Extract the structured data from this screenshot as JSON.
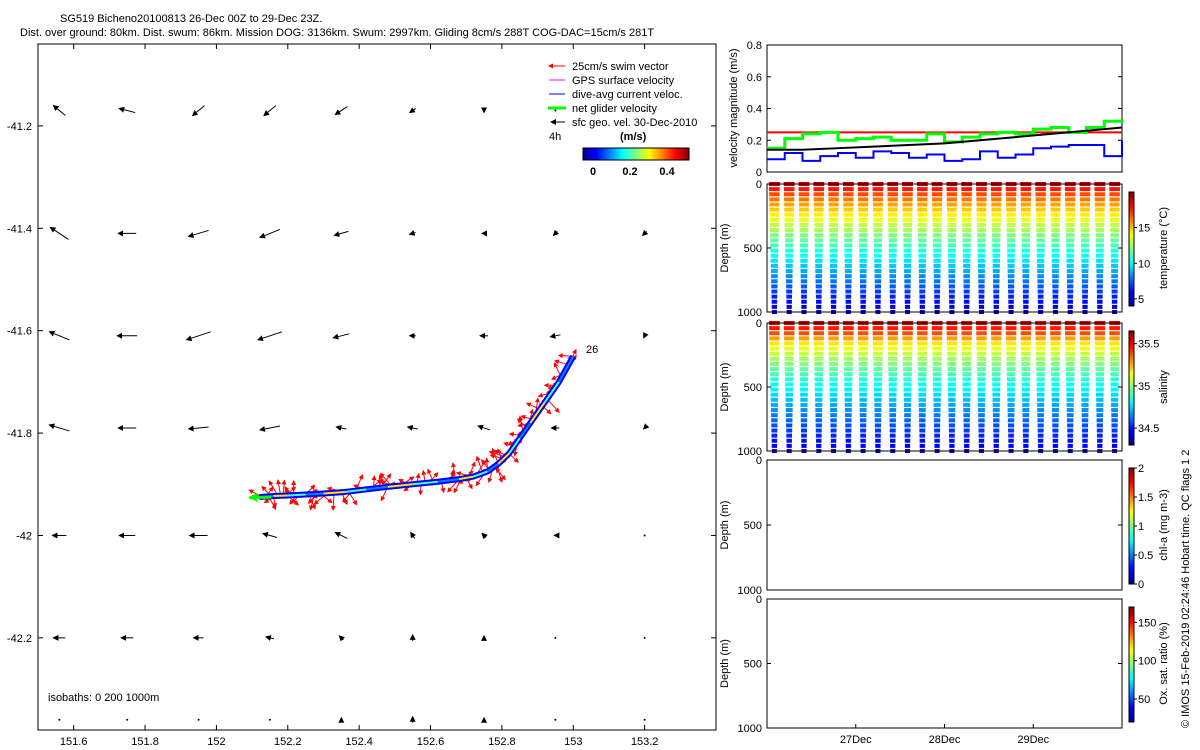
{
  "header": {
    "line1": "SG519 Bicheno20100813 26-Dec 00Z to 29-Dec 23Z.",
    "line2": "Dist. over ground: 80km. Dist. swum: 86km. Mission DOG: 3136km. Swum: 2997km. Gliding 8cm/s 288T COG-DAC=15cm/s 281T"
  },
  "credit": "© IMOS 15-Feb-2019 02:24:46 Hobart time. QC flags 1  2",
  "colors": {
    "swim": "#ff0000",
    "gps": "#ff00ff",
    "dac": "#0000ff",
    "net": "#00ff00",
    "geo": "#000000"
  },
  "chart_data": [
    {
      "type": "map",
      "xlim": [
        151.5,
        153.4
      ],
      "ylim": [
        -42.38,
        -41.04
      ],
      "xticks": [
        "151.6",
        "151.8",
        "152",
        "152.2",
        "152.4",
        "152.6",
        "152.8",
        "153",
        "153.2"
      ],
      "xtick_values": [
        151.6,
        151.8,
        152.0,
        152.2,
        152.4,
        152.6,
        152.8,
        153.0,
        153.2
      ],
      "yticks": [
        "-41.2",
        "-41.4",
        "-41.6",
        "-41.8",
        "-42",
        "-42.2"
      ],
      "ytick_values": [
        -41.2,
        -41.4,
        -41.6,
        -41.8,
        -42.0,
        -42.2
      ],
      "legend": {
        "items": [
          "25cm/s swim vector",
          "GPS surface velocity",
          "dive-avg current veloc.",
          "net glider velocity",
          "sfc geo. vel. 30-Dec-2010"
        ],
        "time_label": "4h",
        "colorbar_title": "(m/s)",
        "colorbar_ticks": [
          "0",
          "0.2",
          "0.4"
        ]
      },
      "isobaths_label": "isobaths: 0   200  1000m",
      "track_start_label": "26",
      "track": {
        "lon": [
          153.0,
          152.96,
          152.92,
          152.88,
          152.85,
          152.82,
          152.79,
          152.76,
          152.72,
          152.68,
          152.62,
          152.55,
          152.48,
          152.42,
          152.36,
          152.3,
          152.25,
          152.2,
          152.16,
          152.12
        ],
        "lat": [
          -41.65,
          -41.7,
          -41.74,
          -41.78,
          -41.81,
          -41.84,
          -41.86,
          -41.875,
          -41.885,
          -41.89,
          -41.895,
          -41.9,
          -41.905,
          -41.91,
          -41.915,
          -41.918,
          -41.92,
          -41.922,
          -41.923,
          -41.925
        ]
      },
      "geo_vectors": {
        "lat_rows": [
          -41.17,
          -41.41,
          -41.61,
          -41.79,
          -42.0,
          -42.2,
          -42.36
        ],
        "lon_cols": [
          151.56,
          151.75,
          151.95,
          152.15,
          152.35,
          152.55,
          152.75,
          152.95,
          153.2
        ],
        "u": [
          [
            -0.06,
            -0.08,
            -0.06,
            -0.06,
            -0.06,
            -0.03,
            0.0,
            0.0,
            0.0
          ],
          [
            -0.09,
            -0.09,
            -0.1,
            -0.1,
            -0.07,
            -0.03,
            -0.02,
            -0.02,
            -0.02
          ],
          [
            -0.1,
            -0.1,
            -0.12,
            -0.12,
            -0.08,
            -0.03,
            -0.04,
            -0.05,
            -0.01
          ],
          [
            -0.1,
            -0.09,
            -0.1,
            -0.1,
            -0.05,
            -0.05,
            -0.06,
            -0.04,
            -0.01
          ],
          [
            -0.07,
            -0.08,
            -0.09,
            -0.07,
            -0.06,
            -0.02,
            -0.02,
            -0.01,
            0.0
          ],
          [
            -0.06,
            -0.06,
            -0.05,
            -0.04,
            -0.02,
            0.0,
            0.0,
            0.0,
            0.0
          ],
          [
            0.0,
            0.0,
            0.0,
            0.0,
            0.0,
            0.0,
            0.0,
            0.0,
            0.0
          ]
        ],
        "v": [
          [
            0.05,
            0.02,
            -0.05,
            -0.05,
            -0.04,
            -0.02,
            -0.02,
            0.0,
            0.0
          ],
          [
            0.06,
            0.0,
            -0.03,
            -0.04,
            -0.02,
            -0.01,
            0.0,
            -0.02,
            -0.02
          ],
          [
            0.04,
            0.0,
            -0.04,
            -0.04,
            -0.02,
            0.0,
            0.0,
            -0.01,
            -0.02
          ],
          [
            0.03,
            0.0,
            -0.01,
            -0.02,
            0.01,
            0.01,
            0.02,
            0.0,
            -0.01
          ],
          [
            0.0,
            0.0,
            0.0,
            0.02,
            0.03,
            0.03,
            0.02,
            0.0,
            0.0
          ],
          [
            0.0,
            0.0,
            0.0,
            0.01,
            0.02,
            0.03,
            0.02,
            0.0,
            0.0
          ],
          [
            0.0,
            0.0,
            0.0,
            0.0,
            0.02,
            0.03,
            0.02,
            0.0,
            0.0
          ]
        ]
      }
    },
    {
      "type": "line",
      "ylabel": "velocity magnitude (m/s)",
      "ylim": [
        0,
        0.8
      ],
      "yticks": [
        "0",
        "0.2",
        "0.4",
        "0.6",
        "0.8"
      ],
      "xlim": [
        0,
        100
      ],
      "series": [
        {
          "name": "swim",
          "color": "#ff0000",
          "x": [
            0,
            100
          ],
          "y": [
            0.25,
            0.25
          ]
        },
        {
          "name": "gps",
          "color": "#00ff00",
          "x": [
            0,
            5,
            10,
            15,
            20,
            25,
            30,
            35,
            40,
            45,
            50,
            55,
            60,
            65,
            70,
            75,
            80,
            85,
            90,
            95,
            100
          ],
          "y": [
            0.15,
            0.21,
            0.24,
            0.25,
            0.2,
            0.21,
            0.22,
            0.2,
            0.2,
            0.24,
            0.19,
            0.22,
            0.24,
            0.25,
            0.24,
            0.27,
            0.28,
            0.25,
            0.28,
            0.32,
            0.33
          ]
        },
        {
          "name": "dac",
          "color": "#0000ff",
          "x": [
            0,
            5,
            10,
            15,
            20,
            25,
            30,
            35,
            40,
            45,
            50,
            55,
            60,
            65,
            70,
            75,
            80,
            85,
            90,
            95,
            100
          ],
          "y": [
            0.08,
            0.12,
            0.07,
            0.1,
            0.12,
            0.09,
            0.13,
            0.12,
            0.09,
            0.11,
            0.07,
            0.08,
            0.13,
            0.09,
            0.11,
            0.15,
            0.16,
            0.17,
            0.17,
            0.1,
            0.2
          ]
        },
        {
          "name": "net",
          "color": "#000000",
          "x": [
            0,
            10,
            20,
            30,
            40,
            50,
            60,
            70,
            80,
            90,
            100
          ],
          "y": [
            0.14,
            0.14,
            0.15,
            0.16,
            0.17,
            0.18,
            0.2,
            0.22,
            0.24,
            0.26,
            0.28
          ]
        }
      ]
    },
    {
      "type": "scatter",
      "ylabel": "Depth (m)",
      "colorbar_label": "temperature (°C)",
      "ylim": [
        1000,
        0
      ],
      "yticks": [
        "0",
        "500",
        "1000"
      ],
      "cbar_ticks": [
        "5",
        "10",
        "15"
      ],
      "cbar_values": [
        5,
        10,
        15
      ],
      "cbar_range": [
        4,
        20
      ],
      "dives": 24
    },
    {
      "type": "scatter",
      "ylabel": "Depth (m)",
      "colorbar_label": "salinity",
      "ylim": [
        1000,
        0
      ],
      "yticks": [
        "0",
        "500",
        "1000"
      ],
      "cbar_ticks": [
        "34.5",
        "35",
        "35.5"
      ],
      "cbar_values": [
        34.5,
        35.0,
        35.5
      ],
      "cbar_range": [
        34.3,
        35.65
      ],
      "dives": 24
    },
    {
      "type": "scatter",
      "ylabel": "Depth (m)",
      "colorbar_label": "chl-a (mg m-3)",
      "ylim": [
        1000,
        0
      ],
      "yticks": [
        "0",
        "500",
        "1000"
      ],
      "cbar_ticks": [
        "0",
        "0.5",
        "1",
        "1.5",
        "2"
      ],
      "cbar_values": [
        0,
        0.5,
        1.0,
        1.5,
        2.0
      ],
      "cbar_range": [
        0,
        2
      ]
    },
    {
      "type": "scatter",
      "ylabel": "Depth (m)",
      "colorbar_label": "Ox. sat. ratio (%)",
      "ylim": [
        1000,
        0
      ],
      "yticks": [
        "0",
        "500",
        "1000"
      ],
      "cbar_ticks": [
        "50",
        "100",
        "150"
      ],
      "cbar_values": [
        50,
        100,
        150
      ],
      "cbar_range": [
        20,
        170
      ],
      "xticks": [
        "27Dec",
        "28Dec",
        "29Dec"
      ],
      "xtick_values": [
        24,
        48,
        72
      ],
      "xlim_hours": [
        0,
        96
      ]
    }
  ]
}
